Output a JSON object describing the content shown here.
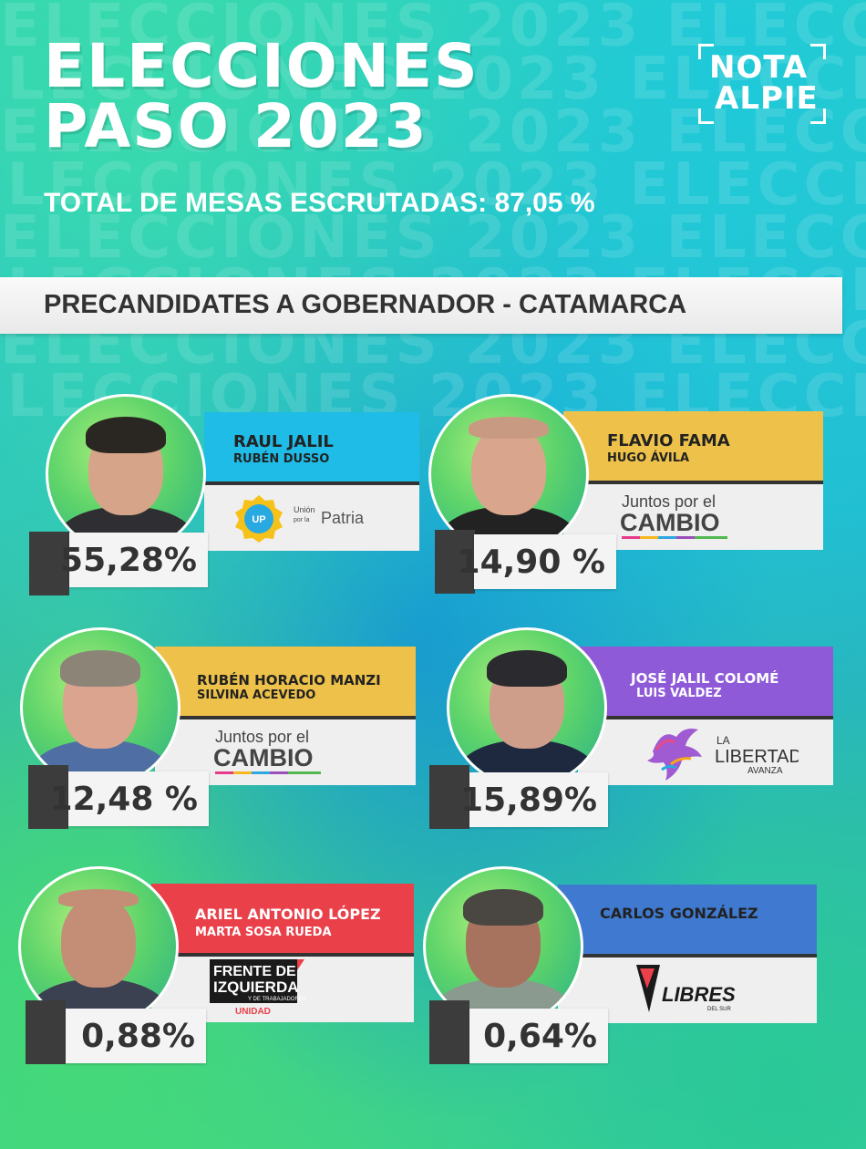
{
  "background_text": "ELECCIONES 2023 ELECCIONES",
  "header": {
    "title_line1": "ELECCIONES",
    "title_line2": "PASO 2023",
    "subtitle": "TOTAL DE MESAS ESCRUTADAS: 87,05 %",
    "logo_line1": "NOTA",
    "logo_line2": "ALPIE"
  },
  "banner": "PRECANDIDATES A GOBERNADOR - CATAMARCA",
  "candidates": [
    {
      "name": "RAUL JALIL",
      "running_mate": "RUBÉN DUSSO",
      "percentage": "55,28%",
      "party_logo": "union-por-la-patria-logo",
      "party_text": [
        "Unión",
        "por la",
        "Patria",
        "UP"
      ],
      "name_color": "#1ebce6"
    },
    {
      "name": "FLAVIO FAMA",
      "running_mate": "HUGO ÁVILA",
      "percentage": "14,90 %",
      "party_logo": "juntos-por-el-cambio-logo",
      "party_text": [
        "Juntos por el",
        "CAMBIO"
      ],
      "name_color": "#eec24a"
    },
    {
      "name": "RUBÉN HORACIO MANZI",
      "running_mate": "SILVINA ACEVEDO",
      "percentage": "12,48 %",
      "party_logo": "juntos-por-el-cambio-logo",
      "party_text": [
        "Juntos por el",
        "CAMBIO"
      ],
      "name_color": "#eec24a"
    },
    {
      "name": "JOSÉ JALIL COLOMÉ",
      "running_mate": "LUIS VALDEZ",
      "percentage": "15,89%",
      "party_logo": "la-libertad-avanza-logo",
      "party_text": [
        "LA",
        "LIBERTAD",
        "AVANZA"
      ],
      "name_color": "#8e5ad8"
    },
    {
      "name": "ARIEL ANTONIO LÓPEZ",
      "running_mate": "MARTA SOSA RUEDA",
      "percentage": "0,88%",
      "party_logo": "frente-de-izquierda-logo",
      "party_text": [
        "FRENTE DE",
        "IZQUIERDA",
        "Y DE TRABAJADORES",
        "UNIDAD"
      ],
      "name_color": "#e9404a"
    },
    {
      "name": "CARLOS GONZÁLEZ",
      "running_mate": "",
      "percentage": "0,64%",
      "party_logo": "libres-del-sur-logo",
      "party_text": [
        "LIBRES",
        "DEL SUR"
      ],
      "name_color": "#3f7ad0"
    }
  ]
}
